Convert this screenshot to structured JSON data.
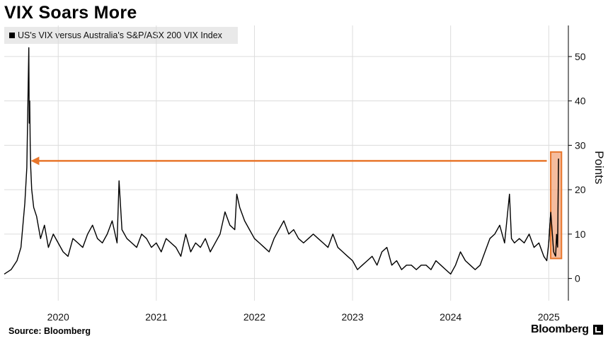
{
  "title": "VIX Soars More",
  "legend": {
    "label": "US's VIX versus Australia's S&P/ASX 200 VIX Index",
    "color": "#000000"
  },
  "source": "Source: Bloomberg",
  "brand": "Bloomberg",
  "colors": {
    "line": "#000000",
    "arrow": "#e8762b",
    "highlight_fill": "#f2a57e",
    "highlight_border": "#e8762b",
    "grid": "#dcdcdc"
  },
  "chart_data": {
    "type": "line",
    "title": "",
    "ylabel": "Points",
    "y_axis_side": "right",
    "ylim": [
      -5,
      57
    ],
    "y_ticks": [
      0,
      10,
      20,
      30,
      40,
      50
    ],
    "x_ticks": [
      "2020",
      "2021",
      "2022",
      "2023",
      "2024",
      "2025"
    ],
    "x_tick_values": [
      2020.0,
      2021.0,
      2022.0,
      2023.0,
      2024.0,
      2025.0
    ],
    "xlim": [
      2019.45,
      2025.2
    ],
    "grid": true,
    "series": [
      {
        "name": "US's VIX versus Australia's S&P/ASX 200 VIX Index",
        "x": [
          2019.45,
          2019.52,
          2019.58,
          2019.62,
          2019.66,
          2019.68,
          2019.7,
          2019.705,
          2019.71,
          2019.715,
          2019.72,
          2019.73,
          2019.75,
          2019.78,
          2019.82,
          2019.86,
          2019.9,
          2019.95,
          2020.0,
          2020.05,
          2020.1,
          2020.15,
          2020.2,
          2020.25,
          2020.3,
          2020.35,
          2020.4,
          2020.45,
          2020.5,
          2020.55,
          2020.6,
          2020.62,
          2020.65,
          2020.7,
          2020.75,
          2020.8,
          2020.85,
          2020.9,
          2020.95,
          2021.0,
          2021.05,
          2021.1,
          2021.15,
          2021.2,
          2021.25,
          2021.3,
          2021.35,
          2021.4,
          2021.45,
          2021.5,
          2021.55,
          2021.6,
          2021.65,
          2021.7,
          2021.75,
          2021.8,
          2021.82,
          2021.85,
          2021.9,
          2021.95,
          2022.0,
          2022.05,
          2022.1,
          2022.15,
          2022.2,
          2022.25,
          2022.3,
          2022.35,
          2022.4,
          2022.45,
          2022.5,
          2022.55,
          2022.6,
          2022.65,
          2022.7,
          2022.75,
          2022.8,
          2022.85,
          2022.9,
          2022.95,
          2023.0,
          2023.05,
          2023.1,
          2023.15,
          2023.2,
          2023.25,
          2023.3,
          2023.35,
          2023.4,
          2023.45,
          2023.5,
          2023.55,
          2023.6,
          2023.65,
          2023.7,
          2023.75,
          2023.8,
          2023.85,
          2023.9,
          2023.95,
          2024.0,
          2024.05,
          2024.1,
          2024.15,
          2024.2,
          2024.25,
          2024.3,
          2024.35,
          2024.4,
          2024.45,
          2024.5,
          2024.55,
          2024.6,
          2024.62,
          2024.65,
          2024.7,
          2024.75,
          2024.8,
          2024.85,
          2024.9,
          2024.95,
          2024.98,
          2025.0,
          2025.02,
          2025.05,
          2025.07,
          2025.08,
          2025.09,
          2025.1
        ],
        "values": [
          1,
          2,
          4,
          7,
          17,
          25,
          52,
          35,
          40,
          30,
          25,
          20,
          16,
          14,
          9,
          12,
          7,
          10,
          8,
          6,
          5,
          9,
          8,
          7,
          10,
          12,
          9,
          8,
          10,
          13,
          8,
          22,
          11,
          9,
          8,
          7,
          10,
          9,
          7,
          8,
          6,
          9,
          8,
          7,
          5,
          10,
          6,
          8,
          7,
          9,
          6,
          8,
          10,
          15,
          12,
          11,
          19,
          16,
          13,
          11,
          9,
          8,
          7,
          6,
          9,
          11,
          13,
          10,
          11,
          9,
          8,
          9,
          10,
          9,
          8,
          7,
          10,
          7,
          6,
          5,
          4,
          2,
          3,
          4,
          5,
          3,
          6,
          7,
          3,
          4,
          2,
          3,
          3,
          2,
          3,
          3,
          2,
          4,
          3,
          2,
          1,
          3,
          6,
          4,
          3,
          2,
          3,
          6,
          9,
          10,
          12,
          8,
          19,
          9,
          8,
          9,
          8,
          10,
          7,
          8,
          5,
          4,
          8,
          15,
          6,
          5,
          10,
          7,
          27
        ]
      }
    ],
    "annotations": [
      {
        "type": "arrow",
        "from_x": 2024.98,
        "to_x": 2019.72,
        "y": 26.5
      },
      {
        "type": "highlight_box",
        "x_start": 2025.02,
        "x_end": 2025.13,
        "y_start": 4.5,
        "y_end": 28.5
      }
    ]
  }
}
